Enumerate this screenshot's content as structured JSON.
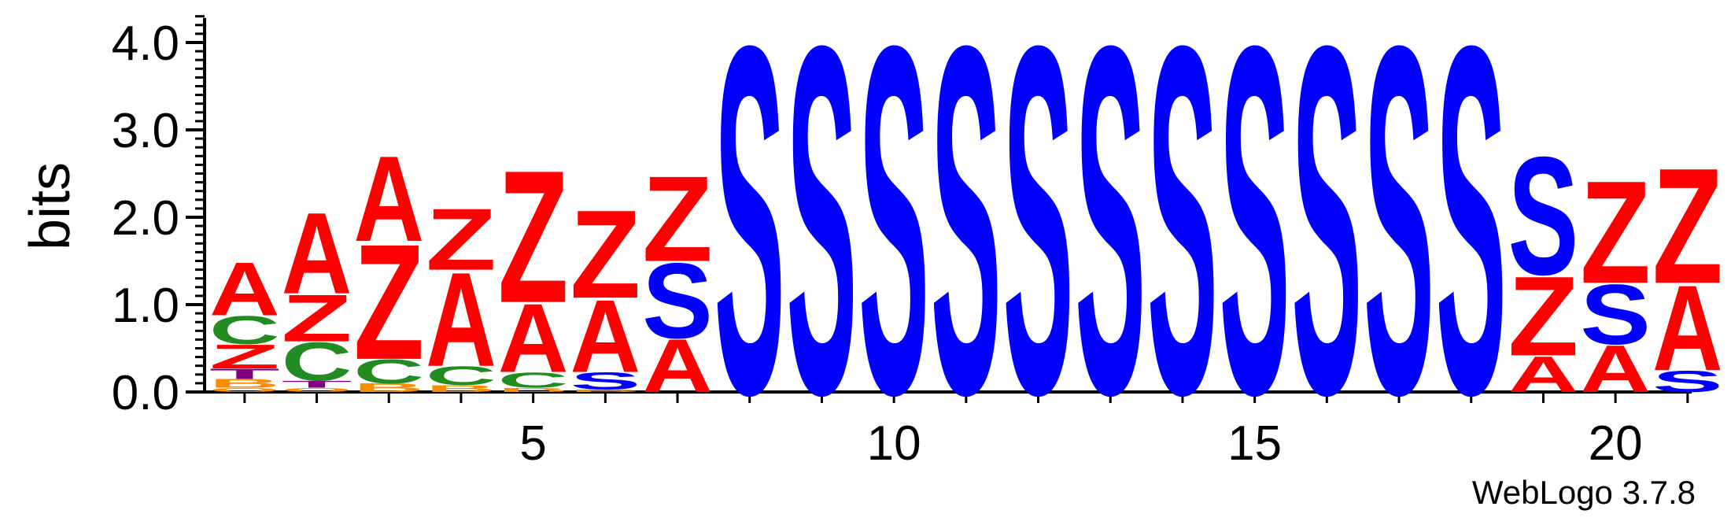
{
  "chart_data": {
    "type": "sequence-logo",
    "ylabel": "bits",
    "ylim": [
      0,
      4.3
    ],
    "y_ticks": [
      "0.0",
      "1.0",
      "2.0",
      "3.0",
      "4.0"
    ],
    "y_tick_values": [
      0,
      1,
      2,
      3,
      4
    ],
    "x_ticks": [
      "5",
      "10",
      "15",
      "20"
    ],
    "x_tick_values": [
      5,
      10,
      15,
      20
    ],
    "credit": "WebLogo 3.7.8",
    "colors": {
      "A": "#ff0000",
      "Z": "#ff0000",
      "S": "#0000ff",
      "C": "#228b22",
      "T": "#800080",
      "B": "#ff8c00",
      "O": "#ff8c00"
    },
    "positions": [
      {
        "pos": 1,
        "stack": [
          [
            "O",
            0.05
          ],
          [
            "B",
            0.1
          ],
          [
            "T",
            0.12
          ],
          [
            "Z",
            0.28
          ],
          [
            "C",
            0.33
          ],
          [
            "A",
            0.62
          ]
        ]
      },
      {
        "pos": 2,
        "stack": [
          [
            "O",
            0.05
          ],
          [
            "T",
            0.08
          ],
          [
            "C",
            0.45
          ],
          [
            "Z",
            0.55
          ],
          [
            "A",
            0.95
          ]
        ]
      },
      {
        "pos": 3,
        "stack": [
          [
            "B",
            0.1
          ],
          [
            "C",
            0.28
          ],
          [
            "Z",
            1.35
          ],
          [
            "A",
            1.0
          ]
        ]
      },
      {
        "pos": 4,
        "stack": [
          [
            "B",
            0.08
          ],
          [
            "C",
            0.22
          ],
          [
            "A",
            1.1
          ],
          [
            "Z",
            0.72
          ]
        ]
      },
      {
        "pos": 5,
        "stack": [
          [
            "B",
            0.05
          ],
          [
            "C",
            0.18
          ],
          [
            "A",
            0.8
          ],
          [
            "Z",
            1.55
          ]
        ]
      },
      {
        "pos": 6,
        "stack": [
          [
            "B",
            0.03
          ],
          [
            "S",
            0.2
          ],
          [
            "A",
            0.85
          ],
          [
            "Z",
            1.03
          ]
        ]
      },
      {
        "pos": 7,
        "stack": [
          [
            "A",
            0.62
          ],
          [
            "S",
            0.88
          ],
          [
            "Z",
            1.0
          ]
        ]
      },
      {
        "pos": 8,
        "stack": [
          [
            "S",
            4.07
          ]
        ]
      },
      {
        "pos": 9,
        "stack": [
          [
            "S",
            4.07
          ]
        ]
      },
      {
        "pos": 10,
        "stack": [
          [
            "S",
            4.07
          ]
        ]
      },
      {
        "pos": 11,
        "stack": [
          [
            "S",
            4.07
          ]
        ]
      },
      {
        "pos": 12,
        "stack": [
          [
            "S",
            4.07
          ]
        ]
      },
      {
        "pos": 13,
        "stack": [
          [
            "S",
            4.07
          ]
        ]
      },
      {
        "pos": 14,
        "stack": [
          [
            "S",
            4.07
          ]
        ]
      },
      {
        "pos": 15,
        "stack": [
          [
            "S",
            4.07
          ]
        ]
      },
      {
        "pos": 16,
        "stack": [
          [
            "S",
            4.07
          ]
        ]
      },
      {
        "pos": 17,
        "stack": [
          [
            "S",
            4.07
          ]
        ]
      },
      {
        "pos": 18,
        "stack": [
          [
            "S",
            4.07
          ]
        ]
      },
      {
        "pos": 19,
        "stack": [
          [
            "A",
            0.42
          ],
          [
            "Z",
            0.93
          ],
          [
            "S",
            1.38
          ]
        ]
      },
      {
        "pos": 20,
        "stack": [
          [
            "A",
            0.55
          ],
          [
            "S",
            0.7
          ],
          [
            "Z",
            1.2
          ]
        ]
      },
      {
        "pos": 21,
        "stack": [
          [
            "S",
            0.25
          ],
          [
            "A",
            1.0
          ],
          [
            "Z",
            1.35
          ]
        ]
      }
    ]
  }
}
